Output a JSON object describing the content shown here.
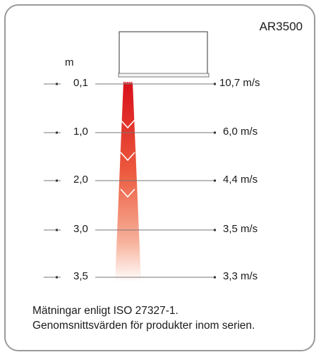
{
  "model": "AR3500",
  "depth_unit": "m",
  "measurements": [
    {
      "distance": "0,1",
      "speed": "10,7 m/s"
    },
    {
      "distance": "1,0",
      "speed": "6,0 m/s"
    },
    {
      "distance": "2,0",
      "speed": "4,4 m/s"
    },
    {
      "distance": "3,0",
      "speed": "3,5 m/s"
    },
    {
      "distance": "3,5",
      "speed": "3,3 m/s"
    }
  ],
  "note": "Mätningar enligt ISO 27327-1. Genomsnittsvärden för produkter inom serien.",
  "colors": {
    "beam_top": "#d8101a",
    "beam_bottom": "#ffffff",
    "frame": "#9a9a9a",
    "lines": "#777777"
  }
}
